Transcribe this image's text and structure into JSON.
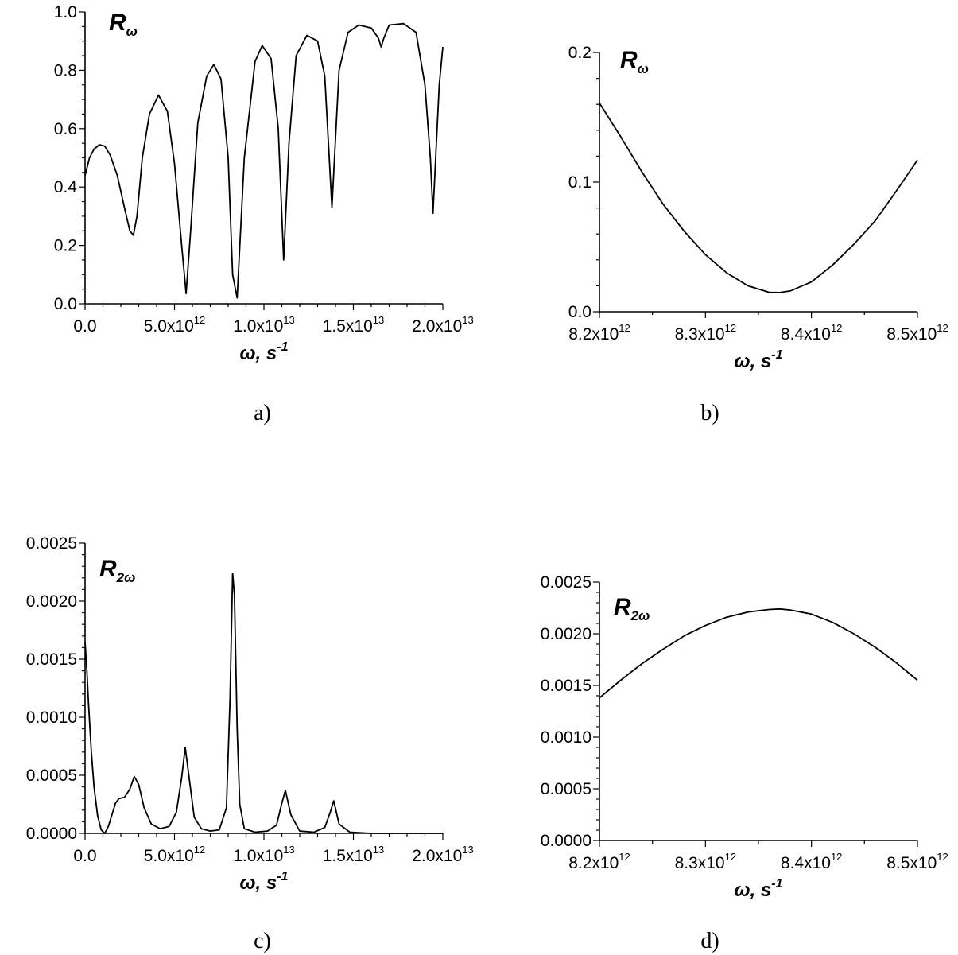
{
  "chart_data": [
    {
      "type": "line",
      "panel_label": "a)",
      "annotation": {
        "base": "R",
        "sub": "ω"
      },
      "xlabel": {
        "main": "ω, s",
        "sup": "-1"
      },
      "xlim": [
        0,
        20000000000000.0
      ],
      "ylim": [
        0,
        1.0
      ],
      "xticks": [
        {
          "value": 0,
          "mant": "0.0",
          "exp": ""
        },
        {
          "value": 5000000000000.0,
          "mant": "5.0x10",
          "exp": "12"
        },
        {
          "value": 10000000000000.0,
          "mant": "1.0x10",
          "exp": "13"
        },
        {
          "value": 15000000000000.0,
          "mant": "1.5x10",
          "exp": "13"
        },
        {
          "value": 20000000000000.0,
          "mant": "2.0x10",
          "exp": "13"
        }
      ],
      "yticks": [
        {
          "value": 0.0,
          "label": "0.0"
        },
        {
          "value": 0.2,
          "label": "0.2"
        },
        {
          "value": 0.4,
          "label": "0.4"
        },
        {
          "value": 0.6,
          "label": "0.6"
        },
        {
          "value": 0.8,
          "label": "0.8"
        },
        {
          "value": 1.0,
          "label": "1.0"
        }
      ],
      "minor_x": 4,
      "minor_y": 3,
      "series": [
        {
          "x": [
            0,
            250000000000.0,
            500000000000.0,
            800000000000.0,
            1100000000000.0,
            1400000000000.0,
            1800000000000.0,
            2200000000000.0,
            2500000000000.0,
            2700000000000.0,
            2900000000000.0,
            3200000000000.0,
            3600000000000.0,
            4100000000000.0,
            4600000000000.0,
            5000000000000.0,
            5400000000000.0,
            5650000000000.0,
            5900000000000.0,
            6300000000000.0,
            6800000000000.0,
            7200000000000.0,
            7600000000000.0,
            8000000000000.0,
            8250000000000.0,
            8500000000000.0,
            8900000000000.0,
            9500000000000.0,
            9900000000000.0,
            10400000000000.0,
            10800000000000.0,
            11100000000000.0,
            11400000000000.0,
            11800000000000.0,
            12400000000000.0,
            13000000000000.0,
            13400000000000.0,
            13800000000000.0,
            14200000000000.0,
            14700000000000.0,
            15300000000000.0,
            16000000000000.0,
            16400000000000.0,
            16550000000000.0,
            16700000000000.0,
            17000000000000.0,
            17800000000000.0,
            18500000000000.0,
            19000000000000.0,
            19300000000000.0,
            19450000000000.0,
            19600000000000.0,
            19800000000000.0,
            20000000000000.0
          ],
          "y": [
            0.44,
            0.5,
            0.53,
            0.545,
            0.54,
            0.51,
            0.44,
            0.33,
            0.25,
            0.235,
            0.3,
            0.5,
            0.65,
            0.715,
            0.66,
            0.48,
            0.2,
            0.035,
            0.25,
            0.62,
            0.78,
            0.82,
            0.77,
            0.5,
            0.1,
            0.02,
            0.5,
            0.83,
            0.885,
            0.84,
            0.6,
            0.15,
            0.55,
            0.85,
            0.92,
            0.9,
            0.78,
            0.33,
            0.8,
            0.93,
            0.955,
            0.945,
            0.91,
            0.88,
            0.91,
            0.955,
            0.96,
            0.93,
            0.75,
            0.5,
            0.31,
            0.5,
            0.75,
            0.88
          ]
        }
      ]
    },
    {
      "type": "line",
      "panel_label": "b)",
      "annotation": {
        "base": "R",
        "sub": "ω"
      },
      "xlabel": {
        "main": "ω, s",
        "sup": "-1"
      },
      "xlim": [
        8200000000000.0,
        8500000000000.0
      ],
      "ylim": [
        0,
        0.2
      ],
      "xticks": [
        {
          "value": 8200000000000.0,
          "mant": "8.2x10",
          "exp": "12"
        },
        {
          "value": 8300000000000.0,
          "mant": "8.3x10",
          "exp": "12"
        },
        {
          "value": 8400000000000.0,
          "mant": "8.4x10",
          "exp": "12"
        },
        {
          "value": 8500000000000.0,
          "mant": "8.5x10",
          "exp": "12"
        }
      ],
      "yticks": [
        {
          "value": 0.0,
          "label": "0.0"
        },
        {
          "value": 0.1,
          "label": "0.1"
        },
        {
          "value": 0.2,
          "label": "0.2"
        }
      ],
      "minor_x": 1,
      "minor_y": 4,
      "series": [
        {
          "x": [
            8200000000000.0,
            8220000000000.0,
            8240000000000.0,
            8260000000000.0,
            8280000000000.0,
            8300000000000.0,
            8320000000000.0,
            8340000000000.0,
            8360000000000.0,
            8370000000000.0,
            8380000000000.0,
            8400000000000.0,
            8420000000000.0,
            8440000000000.0,
            8460000000000.0,
            8480000000000.0,
            8500000000000.0
          ],
          "y": [
            0.161,
            0.135,
            0.108,
            0.083,
            0.062,
            0.044,
            0.03,
            0.02,
            0.015,
            0.0148,
            0.016,
            0.023,
            0.036,
            0.052,
            0.07,
            0.093,
            0.117
          ]
        }
      ]
    },
    {
      "type": "line",
      "panel_label": "c)",
      "annotation": {
        "base": "R",
        "sub": "2ω"
      },
      "xlabel": {
        "main": "ω, s",
        "sup": "-1"
      },
      "xlim": [
        0,
        20000000000000.0
      ],
      "ylim": [
        0,
        0.0025
      ],
      "xticks": [
        {
          "value": 0,
          "mant": "0.0",
          "exp": ""
        },
        {
          "value": 5000000000000.0,
          "mant": "5.0x10",
          "exp": "12"
        },
        {
          "value": 10000000000000.0,
          "mant": "1.0x10",
          "exp": "13"
        },
        {
          "value": 15000000000000.0,
          "mant": "1.5x10",
          "exp": "13"
        },
        {
          "value": 20000000000000.0,
          "mant": "2.0x10",
          "exp": "13"
        }
      ],
      "yticks": [
        {
          "value": 0.0,
          "label": "0.0000"
        },
        {
          "value": 0.0005,
          "label": "0.0005"
        },
        {
          "value": 0.001,
          "label": "0.0010"
        },
        {
          "value": 0.0015,
          "label": "0.0015"
        },
        {
          "value": 0.002,
          "label": "0.0020"
        },
        {
          "value": 0.0025,
          "label": "0.0025"
        }
      ],
      "minor_x": 4,
      "minor_y": 4,
      "series": [
        {
          "x": [
            0,
            100000000000.0,
            200000000000.0,
            350000000000.0,
            500000000000.0,
            700000000000.0,
            900000000000.0,
            1100000000000.0,
            1300000000000.0,
            1500000000000.0,
            1700000000000.0,
            1900000000000.0,
            2200000000000.0,
            2500000000000.0,
            2750000000000.0,
            3000000000000.0,
            3300000000000.0,
            3700000000000.0,
            4200000000000.0,
            4700000000000.0,
            5100000000000.0,
            5400000000000.0,
            5600000000000.0,
            5800000000000.0,
            6100000000000.0,
            6500000000000.0,
            7000000000000.0,
            7500000000000.0,
            7900000000000.0,
            8100000000000.0,
            8250000000000.0,
            8350000000000.0,
            8500000000000.0,
            8650000000000.0,
            8900000000000.0,
            9500000000000.0,
            10200000000000.0,
            10700000000000.0,
            11000000000000.0,
            11200000000000.0,
            11500000000000.0,
            12000000000000.0,
            12800000000000.0,
            13400000000000.0,
            13700000000000.0,
            13900000000000.0,
            14200000000000.0,
            14800000000000.0,
            16000000000000.0,
            18000000000000.0,
            20000000000000.0
          ],
          "y": [
            0.00165,
            0.0014,
            0.0011,
            0.0007,
            0.0004,
            0.00015,
            3e-05,
            0.0,
            6e-05,
            0.00016,
            0.00026,
            0.0003,
            0.00031,
            0.00038,
            0.00049,
            0.00042,
            0.00022,
            8e-05,
            4e-05,
            6e-05,
            0.00018,
            0.00048,
            0.00074,
            0.0005,
            0.00014,
            4e-05,
            2e-05,
            3e-05,
            0.00022,
            0.00115,
            0.00224,
            0.00205,
            0.0009,
            0.00025,
            4e-05,
            1e-05,
            2e-05,
            7e-05,
            0.00026,
            0.00037,
            0.00016,
            2e-05,
            1e-05,
            5e-05,
            0.00018,
            0.00028,
            8e-05,
            1e-05,
            0.0,
            0.0,
            0.0
          ]
        }
      ]
    },
    {
      "type": "line",
      "panel_label": "d)",
      "annotation": {
        "base": "R",
        "sub": "2ω"
      },
      "xlabel": {
        "main": "ω, s",
        "sup": "-1"
      },
      "xlim": [
        8200000000000.0,
        8500000000000.0
      ],
      "ylim": [
        0,
        0.0025
      ],
      "xticks": [
        {
          "value": 8200000000000.0,
          "mant": "8.2x10",
          "exp": "12"
        },
        {
          "value": 8300000000000.0,
          "mant": "8.3x10",
          "exp": "12"
        },
        {
          "value": 8400000000000.0,
          "mant": "8.4x10",
          "exp": "12"
        },
        {
          "value": 8500000000000.0,
          "mant": "8.5x10",
          "exp": "12"
        }
      ],
      "yticks": [
        {
          "value": 0.0,
          "label": "0.0000"
        },
        {
          "value": 0.0005,
          "label": "0.0005"
        },
        {
          "value": 0.001,
          "label": "0.0010"
        },
        {
          "value": 0.0015,
          "label": "0.0015"
        },
        {
          "value": 0.002,
          "label": "0.0020"
        },
        {
          "value": 0.0025,
          "label": "0.0025"
        }
      ],
      "minor_x": 1,
      "minor_y": 4,
      "series": [
        {
          "x": [
            8200000000000.0,
            8220000000000.0,
            8240000000000.0,
            8260000000000.0,
            8280000000000.0,
            8300000000000.0,
            8320000000000.0,
            8340000000000.0,
            8360000000000.0,
            8370000000000.0,
            8380000000000.0,
            8400000000000.0,
            8420000000000.0,
            8440000000000.0,
            8460000000000.0,
            8480000000000.0,
            8500000000000.0
          ],
          "y": [
            0.00138,
            0.00155,
            0.00171,
            0.00185,
            0.00198,
            0.00208,
            0.00216,
            0.00221,
            0.002235,
            0.00224,
            0.00223,
            0.00219,
            0.00211,
            0.002,
            0.00187,
            0.00172,
            0.00155
          ]
        }
      ]
    }
  ]
}
